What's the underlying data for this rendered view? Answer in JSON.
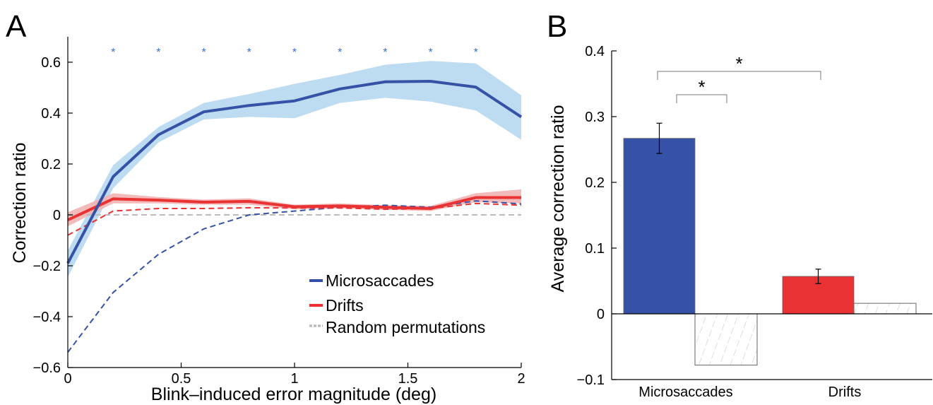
{
  "panels": {
    "a_letter": "A",
    "b_letter": "B"
  },
  "chart_data": [
    {
      "type": "line",
      "panel": "A",
      "xlabel": "Blink–induced error magnitude (deg)",
      "ylabel": "Correction ratio",
      "xlim": [
        0,
        2
      ],
      "ylim": [
        -0.6,
        0.7
      ],
      "x_ticks": [
        0,
        0.5,
        1,
        1.5,
        2
      ],
      "x_tick_labels": [
        "0",
        "0.5",
        "1",
        "1.5",
        "2"
      ],
      "y_ticks": [
        -0.6,
        -0.4,
        -0.2,
        0,
        0.2,
        0.4,
        0.6
      ],
      "y_tick_labels": [
        "−0.6",
        "−0.4",
        "−0.2",
        "0",
        "0.2",
        "0.4",
        "0.6"
      ],
      "x": [
        0,
        0.2,
        0.4,
        0.6,
        0.8,
        1.0,
        1.2,
        1.4,
        1.6,
        1.8,
        2.0
      ],
      "series": [
        {
          "name": "Microsaccades",
          "color": "#3652a6",
          "band_color": "#b6d7ef",
          "values": [
            -0.19,
            0.15,
            0.315,
            0.405,
            0.43,
            0.448,
            0.495,
            0.523,
            0.525,
            0.502,
            0.385
          ],
          "upper": [
            -0.14,
            0.195,
            0.345,
            0.44,
            0.475,
            0.515,
            0.55,
            0.59,
            0.605,
            0.595,
            0.47
          ],
          "lower": [
            -0.245,
            0.105,
            0.285,
            0.375,
            0.385,
            0.38,
            0.44,
            0.46,
            0.445,
            0.41,
            0.295
          ],
          "null_values": [
            -0.54,
            -0.305,
            -0.155,
            -0.055,
            0.0,
            0.015,
            0.03,
            0.038,
            0.03,
            0.055,
            0.043
          ]
        },
        {
          "name": "Drifts",
          "color": "#e83234",
          "band_color": "#f2b3b3",
          "values": [
            -0.02,
            0.063,
            0.058,
            0.05,
            0.053,
            0.032,
            0.035,
            0.03,
            0.025,
            0.068,
            0.068
          ],
          "upper": [
            0.01,
            0.085,
            0.07,
            0.06,
            0.065,
            0.04,
            0.045,
            0.038,
            0.035,
            0.085,
            0.1
          ],
          "lower": [
            -0.045,
            0.045,
            0.045,
            0.04,
            0.04,
            0.022,
            0.025,
            0.02,
            0.015,
            0.05,
            0.045
          ],
          "null_values": [
            -0.08,
            0.015,
            0.025,
            0.025,
            0.028,
            0.027,
            0.027,
            0.022,
            0.025,
            0.045,
            0.038
          ]
        },
        {
          "name": "Random permutations",
          "color": "#bbbbbb",
          "values": [
            0.0,
            0.0,
            0.0,
            0.0,
            0.0,
            0.0,
            0.0,
            0.0,
            0.0,
            0.0,
            0.0
          ]
        }
      ],
      "significance_markers": {
        "x": [
          0.2,
          0.4,
          0.6,
          0.8,
          1.0,
          1.2,
          1.4,
          1.6,
          1.8
        ],
        "symbol": "*"
      },
      "legend": [
        "Microsaccades",
        "Drifts",
        "Random permutations"
      ],
      "legend_position": "bottom-right"
    },
    {
      "type": "bar",
      "panel": "B",
      "ylabel": "Average correction ratio",
      "ylim": [
        -0.1,
        0.4
      ],
      "y_ticks": [
        -0.1,
        0,
        0.1,
        0.2,
        0.3,
        0.4
      ],
      "y_tick_labels": [
        "−0.1",
        "0",
        "0.1",
        "0.2",
        "0.3",
        "0.4"
      ],
      "categories": [
        "Microsaccades",
        "Drifts"
      ],
      "series": [
        {
          "values": [
            0.267,
            0.057
          ],
          "errors": [
            0.023,
            0.011
          ],
          "colors": [
            "#3652a6",
            "#e83234"
          ]
        },
        {
          "values": [
            -0.078,
            0.016
          ],
          "style": "hatched"
        }
      ],
      "significance": [
        {
          "between": [
            "Microsaccades",
            "Microsaccades-permutation"
          ],
          "label": "*"
        },
        {
          "between": [
            "Microsaccades",
            "Drifts"
          ],
          "label": "*"
        }
      ]
    }
  ]
}
